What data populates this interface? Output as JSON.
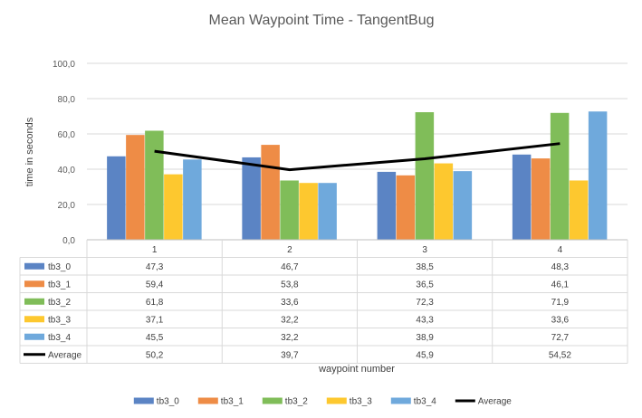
{
  "chart_data": {
    "type": "bar",
    "title": "Mean Waypoint Time - TangentBug",
    "xlabel": "waypoint number",
    "ylabel": "time in seconds",
    "ylim": [
      0,
      100
    ],
    "yticks": [
      "0,0",
      "20,0",
      "40,0",
      "60,0",
      "80,0",
      "100,0"
    ],
    "categories": [
      "1",
      "2",
      "3",
      "4"
    ],
    "grid": true,
    "legend_position": "bottom",
    "series": [
      {
        "name": "tb3_0",
        "color": "#5B84C4",
        "values": [
          47.3,
          46.7,
          38.5,
          48.3
        ],
        "labels": [
          "47,3",
          "46,7",
          "38,5",
          "48,3"
        ]
      },
      {
        "name": "tb3_1",
        "color": "#EE8C46",
        "values": [
          59.4,
          53.8,
          36.5,
          46.1
        ],
        "labels": [
          "59,4",
          "53,8",
          "36,5",
          "46,1"
        ]
      },
      {
        "name": "tb3_2",
        "color": "#80BD59",
        "values": [
          61.8,
          33.6,
          72.3,
          71.9
        ],
        "labels": [
          "61,8",
          "33,6",
          "72,3",
          "71,9"
        ]
      },
      {
        "name": "tb3_3",
        "color": "#FDC82F",
        "values": [
          37.1,
          32.2,
          43.3,
          33.6
        ],
        "labels": [
          "37,1",
          "32,2",
          "43,3",
          "33,6"
        ]
      },
      {
        "name": "tb3_4",
        "color": "#6FA9DC",
        "values": [
          45.5,
          32.2,
          38.9,
          72.7
        ],
        "labels": [
          "45,5",
          "32,2",
          "38,9",
          "72,7"
        ]
      }
    ],
    "average": {
      "name": "Average",
      "type": "line",
      "color": "#000000",
      "values": [
        50.2,
        39.7,
        45.9,
        54.52
      ],
      "labels": [
        "50,2",
        "39,7",
        "45,9",
        "54,52"
      ]
    }
  }
}
